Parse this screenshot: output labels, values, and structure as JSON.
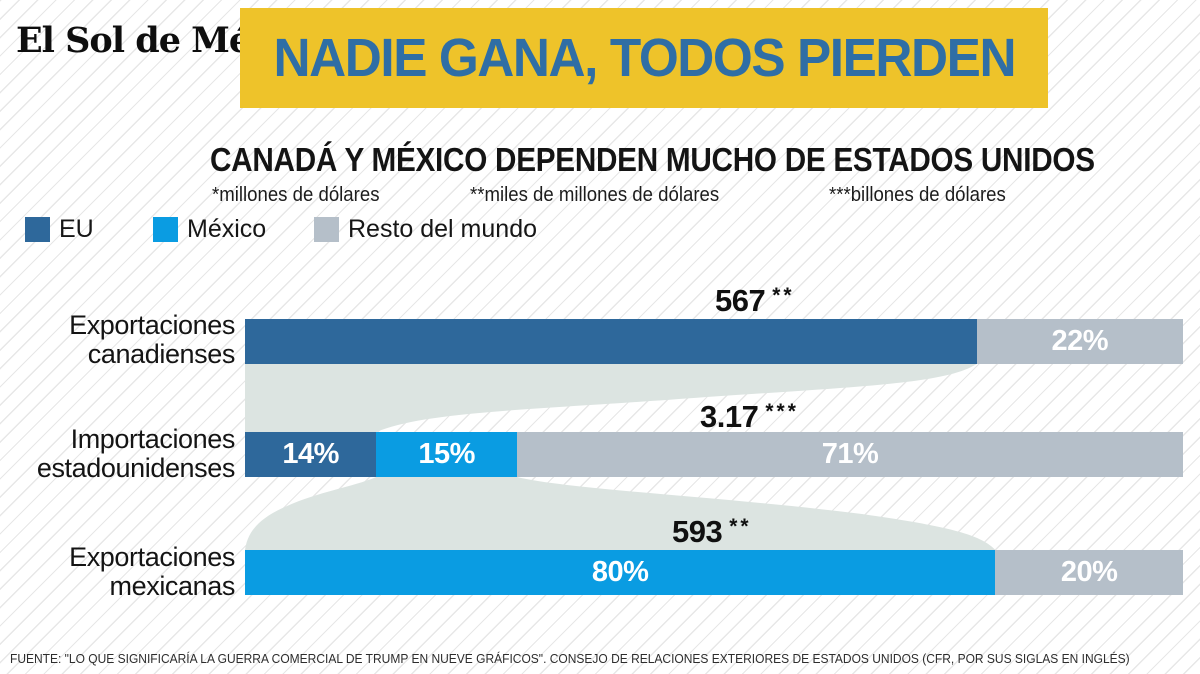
{
  "logo": {
    "text": "El Sol de México"
  },
  "banner": {
    "title": "NADIE GANA, TODOS PIERDEN",
    "bg_color": "#eec32a",
    "text_color": "#2f6ea5"
  },
  "subtitle": "CANADÁ Y MÉXICO DEPENDEN MUCHO DE ESTADOS UNIDOS",
  "flow_color": "#dce4e1",
  "chart_data": {
    "type": "bar",
    "orientation": "horizontal",
    "stacked": true,
    "value_format": "percent",
    "legend_position": "top-left",
    "legend": [
      "EU",
      "México",
      "Resto del mundo"
    ],
    "series_colors": {
      "EU": "#2e689b",
      "México": "#0a9ce2",
      "Resto del mundo": "#b5bfc9"
    },
    "unit_notes": [
      "*millones de dólares",
      "**miles de millones de dólares",
      "***billones de dólares"
    ],
    "rows": [
      {
        "category": [
          "Exportaciones",
          "canadienses"
        ],
        "total": {
          "value": "567",
          "stars": "**"
        },
        "segments": [
          {
            "series": "EU",
            "pct": 78,
            "label": ""
          },
          {
            "series": "Resto del mundo",
            "pct": 22,
            "label": "22%"
          }
        ]
      },
      {
        "category": [
          "Importaciones",
          "estadounidenses"
        ],
        "total": {
          "value": "3.17",
          "stars": "***"
        },
        "segments": [
          {
            "series": "EU",
            "pct": 14,
            "label": "14%"
          },
          {
            "series": "México",
            "pct": 15,
            "label": "15%"
          },
          {
            "series": "Resto del mundo",
            "pct": 71,
            "label": "71%"
          }
        ]
      },
      {
        "category": [
          "Exportaciones",
          "mexicanas"
        ],
        "total": {
          "value": "593",
          "stars": "**"
        },
        "segments": [
          {
            "series": "México",
            "pct": 80,
            "label": "80%"
          },
          {
            "series": "Resto del mundo",
            "pct": 20,
            "label": "20%"
          }
        ]
      }
    ]
  },
  "source": "FUENTE: \"LO QUE SIGNIFICARÍA LA GUERRA COMERCIAL DE TRUMP EN NUEVE GRÁFICOS\". CONSEJO DE RELACIONES EXTERIORES DE ESTADOS UNIDOS (CFR, POR SUS SIGLAS EN INGLÉS)"
}
